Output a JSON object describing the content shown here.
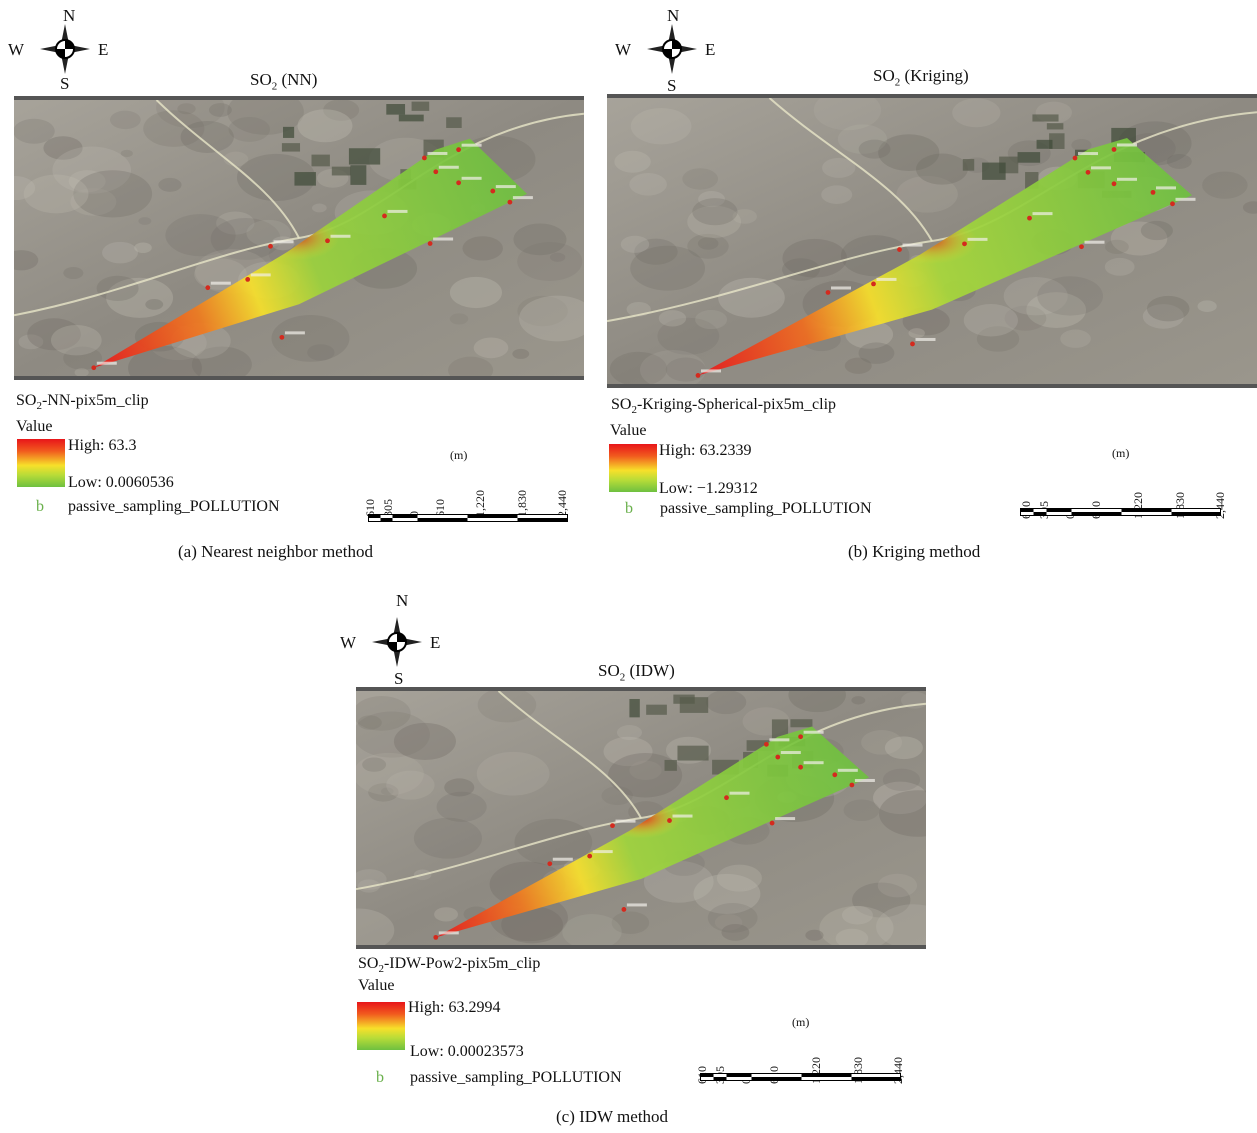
{
  "compass": {
    "n": "N",
    "s": "S",
    "w": "W",
    "e": "E"
  },
  "panels": [
    {
      "title_main": "SO",
      "title_sub": "2",
      "title_rest": " (NN)",
      "layer_main": "SO",
      "layer_sub": "2",
      "layer_rest": "-NN-pix5m_clip",
      "value_label": "Value",
      "high": "High: 63.3",
      "low": "Low: 0.0060536",
      "point_glyph": "b",
      "points_label": "passive_sampling_POLLUTION",
      "unit": "(m)",
      "ticks": [
        "610",
        "305",
        "0",
        "610",
        "1,220",
        "1,830",
        "2,440"
      ],
      "caption": "(a)  Nearest neighbor method",
      "method": "nn"
    },
    {
      "title_main": "SO",
      "title_sub": "2",
      "title_rest": " (Kriging)",
      "layer_main": "SO",
      "layer_sub": "2",
      "layer_rest": "-Kriging-Spherical-pix5m_clip",
      "value_label": "Value",
      "high": "High: 63.2339",
      "low": "Low: −1.29312",
      "point_glyph": "b",
      "points_label": "passive_sampling_POLLUTION",
      "unit": "(m)",
      "ticks": [
        "610",
        "305",
        "0",
        "610",
        "1,220",
        "1,830",
        "2,440"
      ],
      "caption": "(b)  Kriging method",
      "method": "kriging"
    },
    {
      "title_main": "SO",
      "title_sub": "2",
      "title_rest": " (IDW)",
      "layer_main": "SO",
      "layer_sub": "2",
      "layer_rest": "-IDW-Pow2-pix5m_clip",
      "value_label": "Value",
      "high": "High: 63.2994",
      "low": "Low: 0.00023573",
      "point_glyph": "b",
      "points_label": "passive_sampling_POLLUTION",
      "unit": "(m)",
      "ticks": [
        "610",
        "305",
        "0",
        "610",
        "1,220",
        "1,830",
        "2,440"
      ],
      "caption": "(c)  IDW method",
      "method": "idw"
    }
  ],
  "colors": {
    "high": "#e8151a",
    "mid": "#f7e02a",
    "low": "#6ec040",
    "point": "#d42a1e"
  }
}
